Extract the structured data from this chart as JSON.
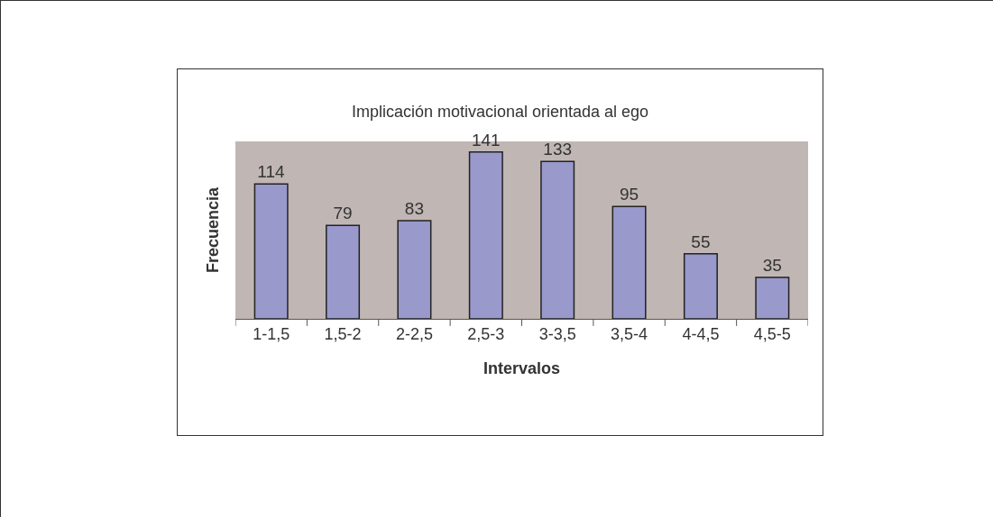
{
  "chart_data": {
    "type": "bar",
    "title": "Implicación motivacional orientada al ego",
    "xlabel": "Intervalos",
    "ylabel": "Frecuencia",
    "categories": [
      "1-1,5",
      "1,5-2",
      "2-2,5",
      "2,5-3",
      "3-3,5",
      "3,5-4",
      "4-4,5",
      "4,5-5"
    ],
    "values": [
      114,
      79,
      83,
      141,
      133,
      95,
      55,
      35
    ],
    "color": "#9999cc",
    "ylim": [
      0,
      150
    ],
    "data_labels": true,
    "tick_labels": "x"
  }
}
